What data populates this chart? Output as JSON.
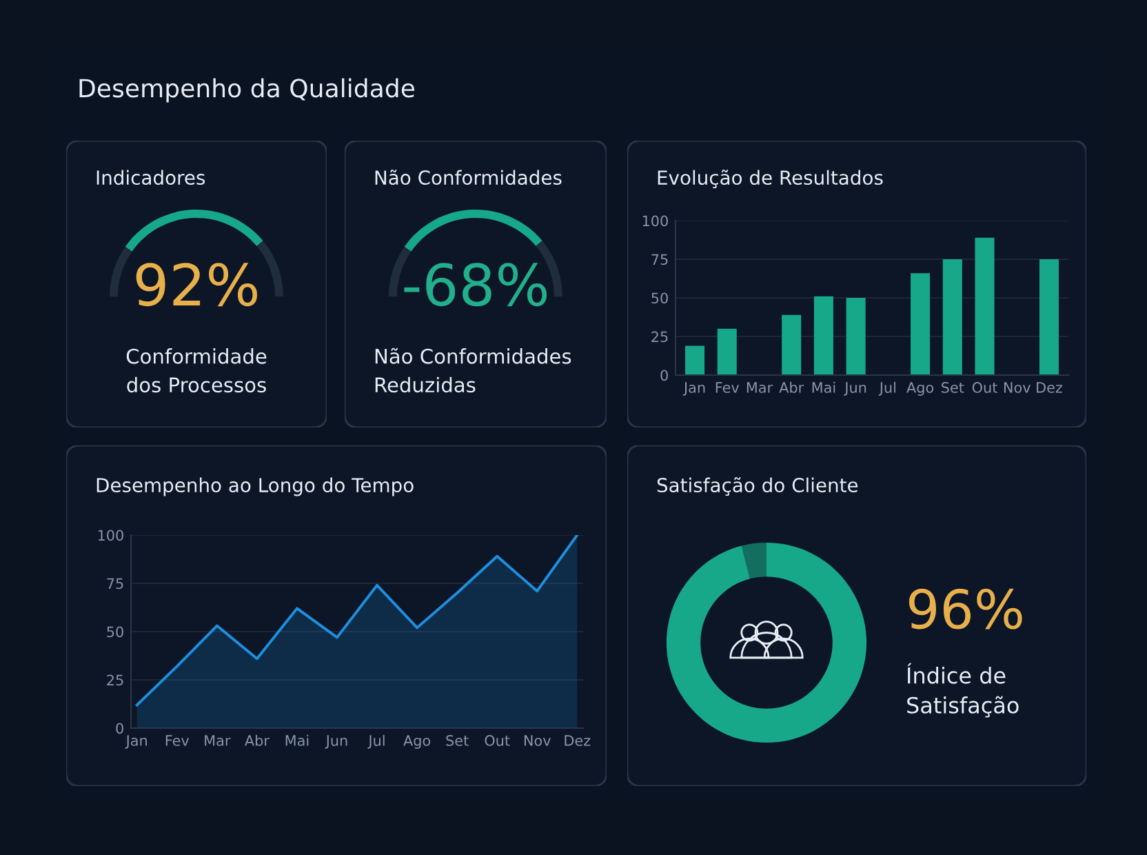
{
  "chart_data": [
    {
      "type": "other",
      "title": "Desempenho da Qualidade"
    },
    {
      "type": "other",
      "title": "Indicadores",
      "color": "#e8b04a",
      "annotations": [
        "92%",
        "Conformidade\ndos Processos"
      ]
    },
    {
      "type": "other",
      "title": "Não Conformidades",
      "color": "#22b08c",
      "annotations": [
        "-68%",
        "Não Conformidades\nReduzidas"
      ]
    },
    {
      "type": "bar",
      "title": "Evolução de Resultados",
      "categories": [
        "Jan",
        "Fev",
        "Mar",
        "Abr",
        "Mai",
        "Jun",
        "Jul",
        "Ago",
        "Set",
        "Out",
        "Nov",
        "Dez"
      ],
      "color": "#17a88a",
      "values": [
        19,
        30,
        null,
        39,
        51,
        50,
        null,
        66,
        75,
        89,
        null,
        75
      ],
      "ylim": [
        0,
        100
      ],
      "yticks": [
        0,
        25,
        50,
        75,
        100
      ],
      "grid": "y"
    },
    {
      "type": "area",
      "title": "Desempenho ao Longo do Tempo",
      "categories": [
        "Jan",
        "Fev",
        "Mar",
        "Abr",
        "Mai",
        "Jun",
        "Jul",
        "Ago",
        "Set",
        "Out",
        "Nov",
        "Dez"
      ],
      "color": "#1e8fe0",
      "values": [
        12,
        32,
        53,
        36,
        62,
        47,
        74,
        52,
        70,
        89,
        71,
        100
      ],
      "ylim": [
        0,
        100
      ],
      "yticks": [
        0,
        25,
        50,
        75,
        100
      ],
      "grid": "y"
    },
    {
      "type": "donut",
      "title": "Satisfação do Cliente",
      "categories": [
        null,
        null
      ],
      "values": [
        96,
        4
      ],
      "colors": [
        "#17a88a",
        "#126f60"
      ],
      "annotations": [
        "96%",
        "Índice de\nSatisfação"
      ]
    }
  ]
}
